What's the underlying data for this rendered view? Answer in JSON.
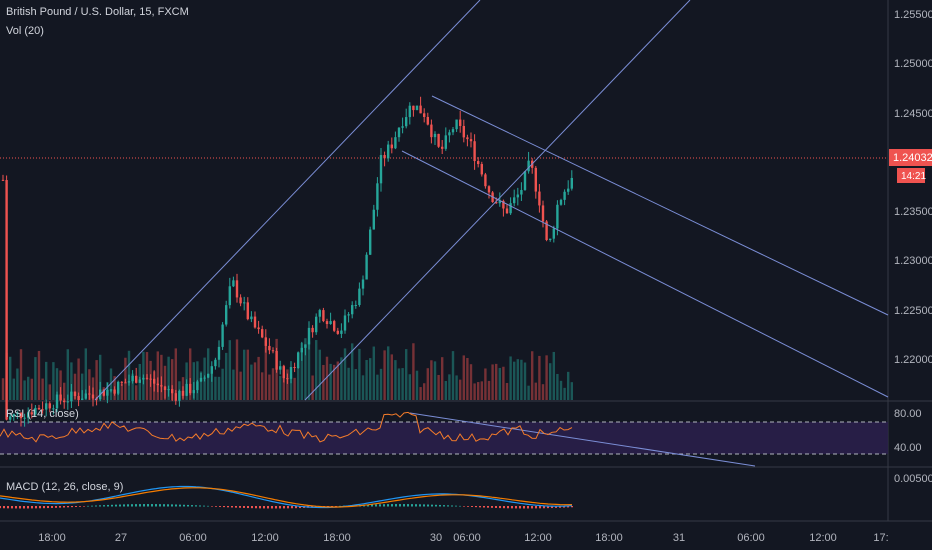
{
  "header": {
    "symbol_title": "British Pound / U.S. Dollar, 15, FXCM",
    "volume_label": "Vol (20)"
  },
  "rsi": {
    "label": "RSI (14, close)",
    "levels": [
      "80.00",
      "40.00"
    ]
  },
  "macd": {
    "label": "MACD (12, 26, close, 9)",
    "levels": [
      "0.00500"
    ]
  },
  "price_axis": {
    "ticks": [
      "1.25500",
      "1.25000",
      "1.24500",
      "1.23500",
      "1.23000",
      "1.22500",
      "1.22000"
    ],
    "current_price": "1.24032",
    "countdown": "14:21"
  },
  "time_axis": {
    "ticks": [
      "18:00",
      "27",
      "06:00",
      "12:00",
      "18:00",
      "30",
      "06:00",
      "12:00",
      "18:00",
      "31",
      "06:00",
      "12:00",
      "17:"
    ]
  },
  "colors": {
    "background": "#131722",
    "up": "#26a69a",
    "down": "#ef5350",
    "trendline": "#7b8ed6",
    "rsi_line": "#f57c2a",
    "rsi_band": "#2a1f4a",
    "macd_line": "#2196f3",
    "signal_line": "#f57c00",
    "price_badge": "#ef5350",
    "grid_text": "#b2b5be"
  }
}
